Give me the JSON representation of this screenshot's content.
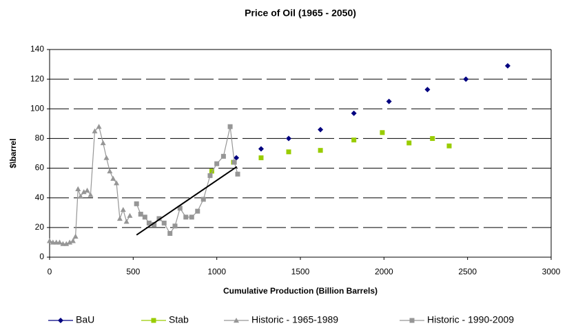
{
  "chart_data": {
    "type": "scatter",
    "title": "Price of Oil (1965 - 2050)",
    "xlabel": "Cumulative Production (Billion Barrels)",
    "ylabel": "$\\barrel",
    "xlim": [
      0,
      3000
    ],
    "xticks": [
      0,
      500,
      1000,
      1500,
      2000,
      2500,
      3000
    ],
    "ylim": [
      0,
      140
    ],
    "yticks": [
      0,
      20,
      40,
      60,
      80,
      100,
      120,
      140
    ],
    "grid": true,
    "legend": "bottom",
    "series": [
      {
        "name": "BaU",
        "color": "#000080",
        "marker": "diamond",
        "line": false,
        "x": [
          1117,
          1265,
          1430,
          1620,
          1820,
          2030,
          2260,
          2490,
          2740
        ],
        "values": [
          67,
          73,
          80,
          86,
          97,
          105,
          113,
          120,
          129
        ]
      },
      {
        "name": "Stab",
        "color": "#99cc00",
        "marker": "square",
        "line": false,
        "x": [
          970,
          1100,
          1265,
          1430,
          1620,
          1820,
          1990,
          2150,
          2290,
          2390
        ],
        "values": [
          58,
          64,
          67,
          71,
          72,
          79,
          84,
          77,
          80,
          75
        ]
      },
      {
        "name": "Historic - 1965-1989",
        "color": "#969696",
        "marker": "triangle",
        "line": true,
        "x": [
          0,
          20,
          40,
          60,
          80,
          100,
          120,
          140,
          155,
          170,
          185,
          205,
          225,
          245,
          270,
          295,
          320,
          340,
          360,
          380,
          400,
          420,
          440,
          460,
          480
        ],
        "values": [
          11,
          10,
          10,
          10,
          9,
          9,
          10,
          11,
          14,
          46,
          41,
          44,
          45,
          42,
          85,
          88,
          77,
          67,
          58,
          53,
          50,
          26,
          32,
          24,
          28
        ]
      },
      {
        "name": "Historic - 1990-2009",
        "color": "#969696",
        "marker": "square",
        "line": true,
        "x": [
          520,
          545,
          570,
          595,
          625,
          655,
          685,
          720,
          750,
          780,
          815,
          850,
          885,
          920,
          960,
          1000,
          1040,
          1080,
          1105,
          1125
        ],
        "values": [
          36,
          29,
          27,
          23,
          22,
          26,
          23,
          16,
          21,
          33,
          27,
          27,
          31,
          39,
          55,
          63,
          68,
          88,
          64,
          56
        ]
      }
    ],
    "lines": [
      {
        "color": "#000000",
        "x": [
          520,
          1120
        ],
        "values": [
          15,
          61
        ]
      }
    ]
  }
}
